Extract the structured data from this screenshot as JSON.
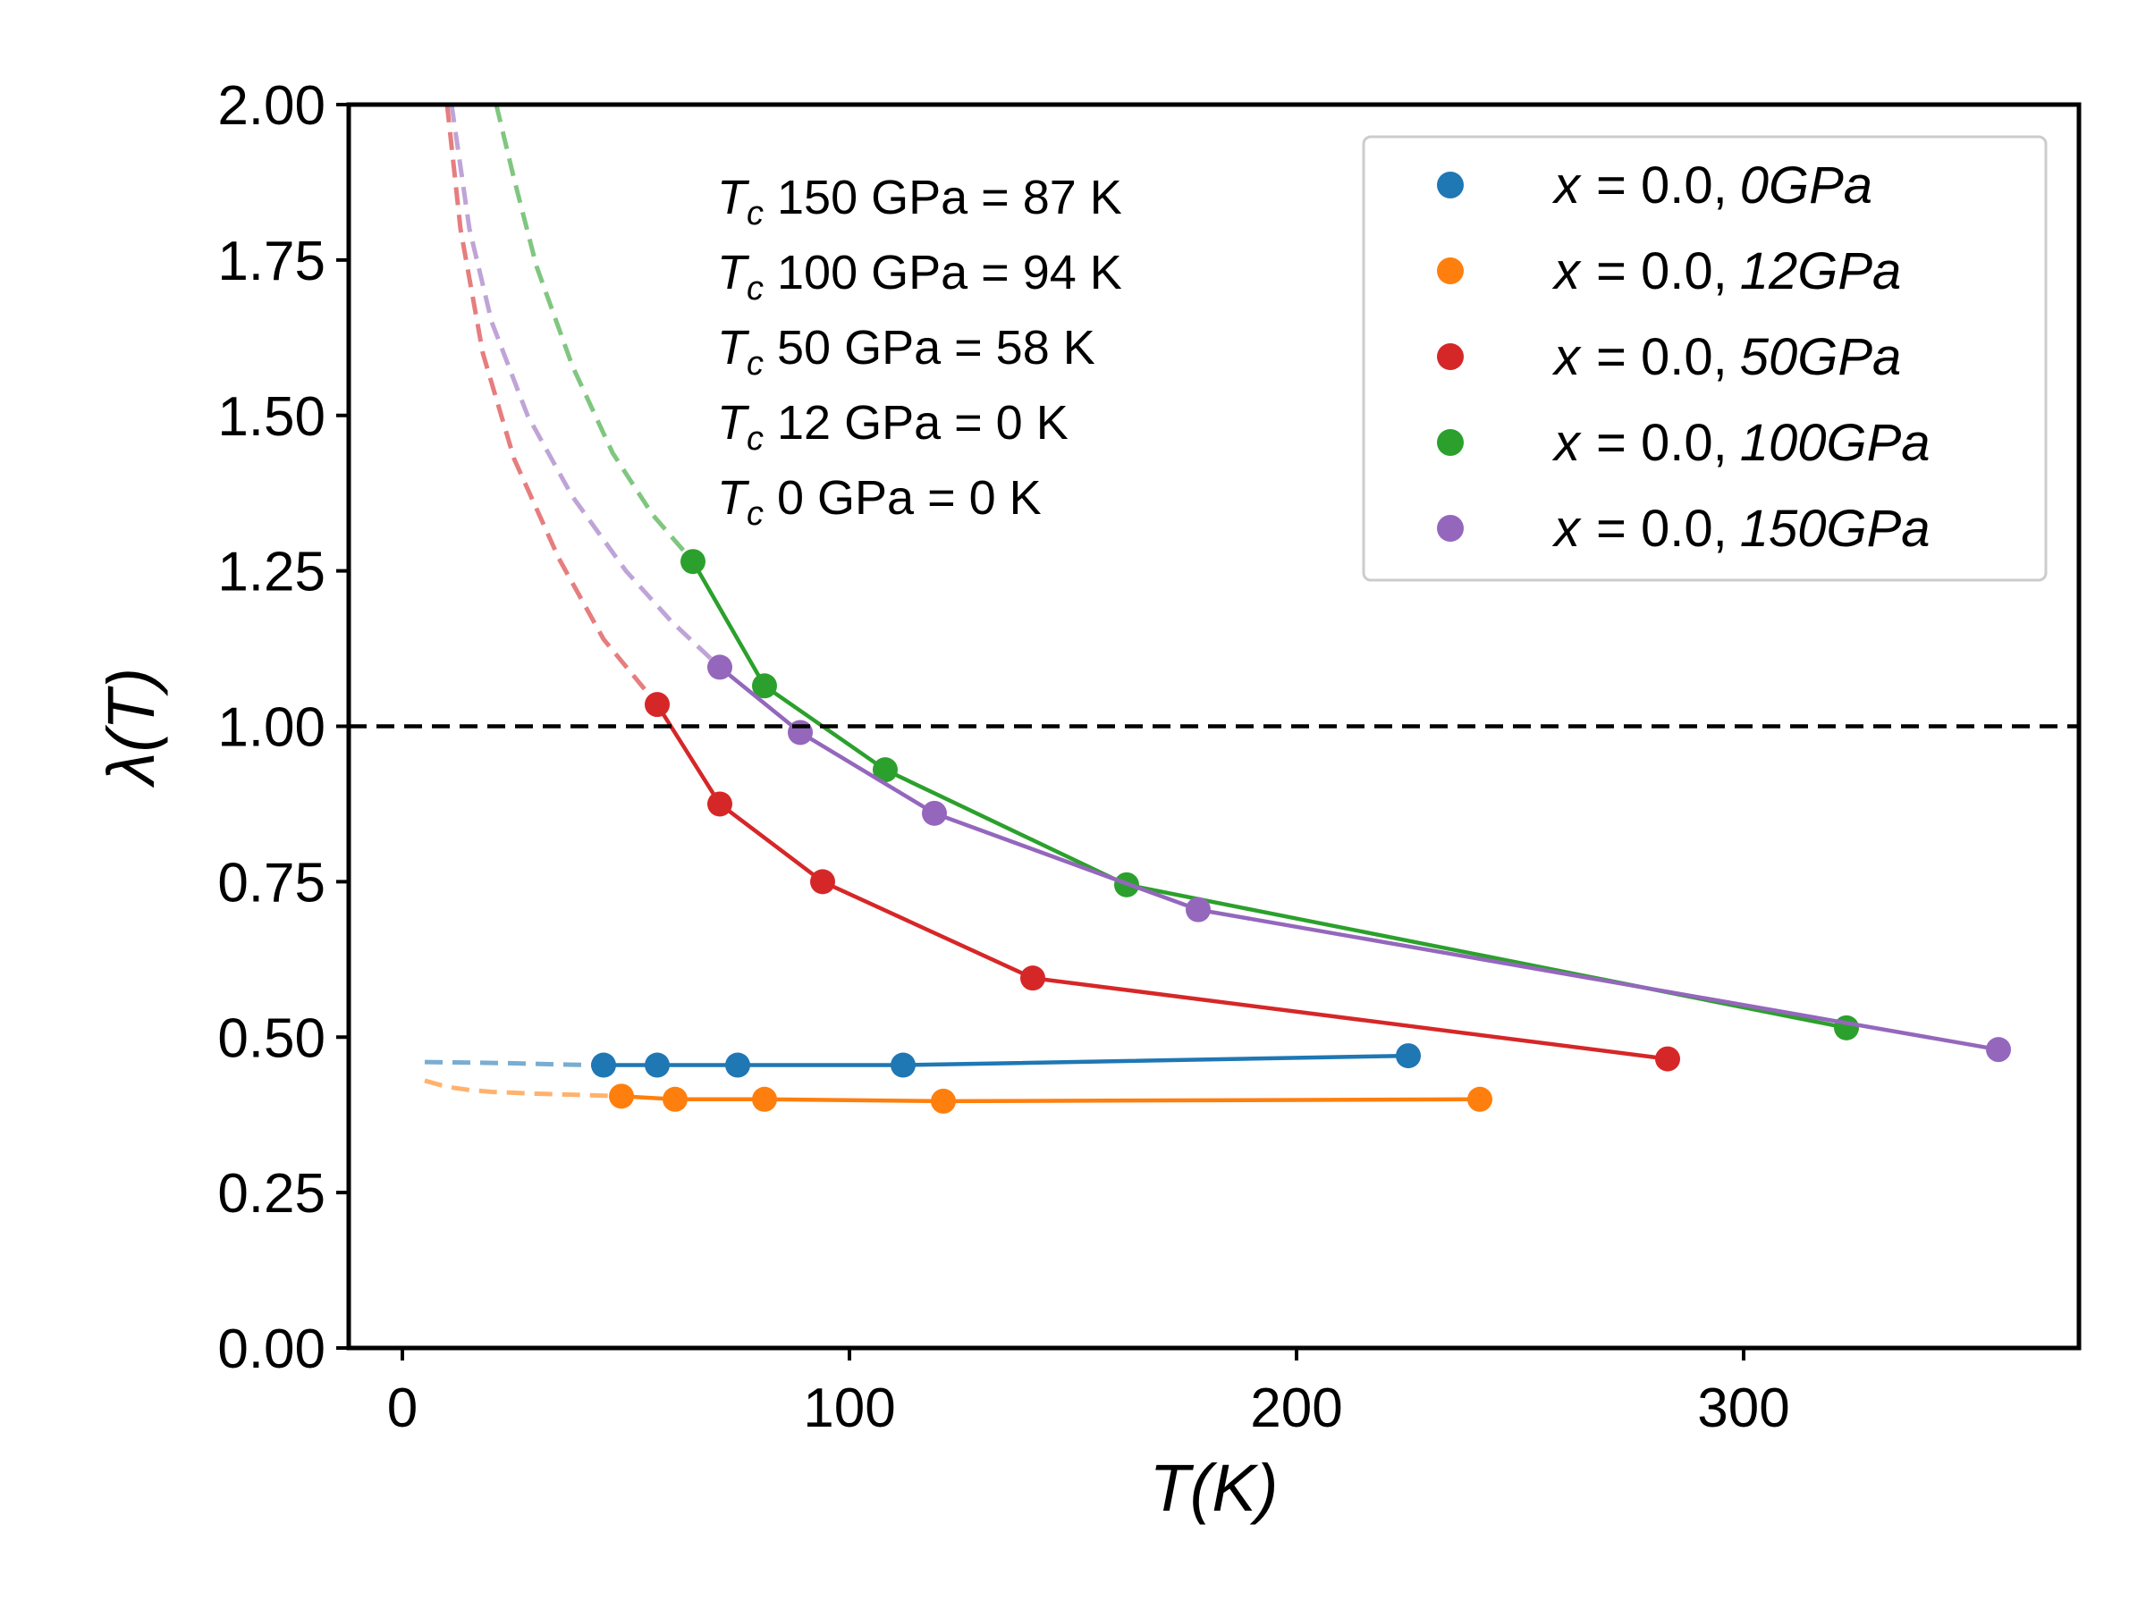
{
  "chart_data": {
    "type": "line",
    "title": "",
    "xlabel": "T(K)",
    "ylabel": "λ(T)",
    "xlim": [
      -12,
      375
    ],
    "ylim": [
      0.0,
      2.0
    ],
    "xticks": [
      0,
      100,
      200,
      300
    ],
    "xtick_labels": [
      "0",
      "100",
      "200",
      "300"
    ],
    "yticks": [
      0.0,
      0.25,
      0.5,
      0.75,
      1.0,
      1.25,
      1.5,
      1.75,
      2.0
    ],
    "ytick_labels": [
      "0.00",
      "0.25",
      "0.50",
      "0.75",
      "1.00",
      "1.25",
      "1.50",
      "1.75",
      "2.00"
    ],
    "grid": false,
    "legend_position": "top-right",
    "reference_line": {
      "y": 1.0,
      "color": "#000000",
      "style": "dashed"
    },
    "series": [
      {
        "name": "x = 0.0, 0GPa",
        "label_parts": [
          "x",
          "= 0.0,",
          "0GPa"
        ],
        "color": "#1f77b4",
        "x": [
          45,
          57,
          75,
          112,
          225
        ],
        "y": [
          0.455,
          0.455,
          0.455,
          0.455,
          0.47
        ],
        "extrapolation": {
          "x": [
            5,
            15,
            25,
            35,
            45
          ],
          "y": [
            0.46,
            0.459,
            0.458,
            0.456,
            0.455
          ]
        }
      },
      {
        "name": "x = 0.0, 12GPa",
        "label_parts": [
          "x",
          "= 0.0,",
          "12GPa"
        ],
        "color": "#ff7f0e",
        "x": [
          49,
          61,
          81,
          121,
          241
        ],
        "y": [
          0.405,
          0.4,
          0.4,
          0.397,
          0.4
        ],
        "extrapolation": {
          "x": [
            5,
            10,
            15,
            20,
            30,
            40,
            49
          ],
          "y": [
            0.43,
            0.42,
            0.415,
            0.412,
            0.409,
            0.407,
            0.405
          ]
        }
      },
      {
        "name": "x = 0.0, 50GPa",
        "label_parts": [
          "x",
          "= 0.0,",
          "50GPa"
        ],
        "color": "#d62728",
        "x": [
          57,
          71,
          94,
          141,
          283
        ],
        "y": [
          1.035,
          0.875,
          0.75,
          0.595,
          0.465
        ],
        "extrapolation": {
          "x": [
            10,
            13,
            18,
            25,
            35,
            45,
            57
          ],
          "y": [
            2.0,
            1.8,
            1.6,
            1.43,
            1.27,
            1.14,
            1.035
          ]
        }
      },
      {
        "name": "x = 0.0, 100GPa",
        "label_parts": [
          "x",
          "= 0.0,",
          "100GPa"
        ],
        "color": "#2ca02c",
        "x": [
          65,
          81,
          108,
          162,
          323
        ],
        "y": [
          1.265,
          1.065,
          0.93,
          0.745,
          0.515
        ],
        "extrapolation": {
          "x": [
            21,
            25,
            30,
            38,
            47,
            56,
            65
          ],
          "y": [
            2.0,
            1.88,
            1.74,
            1.58,
            1.44,
            1.34,
            1.265
          ]
        }
      },
      {
        "name": "x = 0.0, 150GPa",
        "label_parts": [
          "x",
          "= 0.0,",
          "150GPa"
        ],
        "color": "#9467bd",
        "x": [
          71,
          89,
          119,
          178,
          357
        ],
        "y": [
          1.095,
          0.99,
          0.86,
          0.705,
          0.48
        ],
        "extrapolation": {
          "x": [
            11,
            15,
            20,
            28,
            38,
            50,
            60,
            71
          ],
          "y": [
            2.0,
            1.8,
            1.65,
            1.5,
            1.37,
            1.25,
            1.17,
            1.095
          ]
        }
      }
    ],
    "annotations": [
      {
        "sub": "c",
        "rest": " 150 GPa = 87 K"
      },
      {
        "sub": "c",
        "rest": " 100 GPa = 94 K"
      },
      {
        "sub": "c",
        "rest": " 50 GPa = 58 K"
      },
      {
        "sub": "c",
        "rest": " 12 GPa = 0 K"
      },
      {
        "sub": "c",
        "rest": " 0 GPa = 0 K"
      }
    ]
  }
}
